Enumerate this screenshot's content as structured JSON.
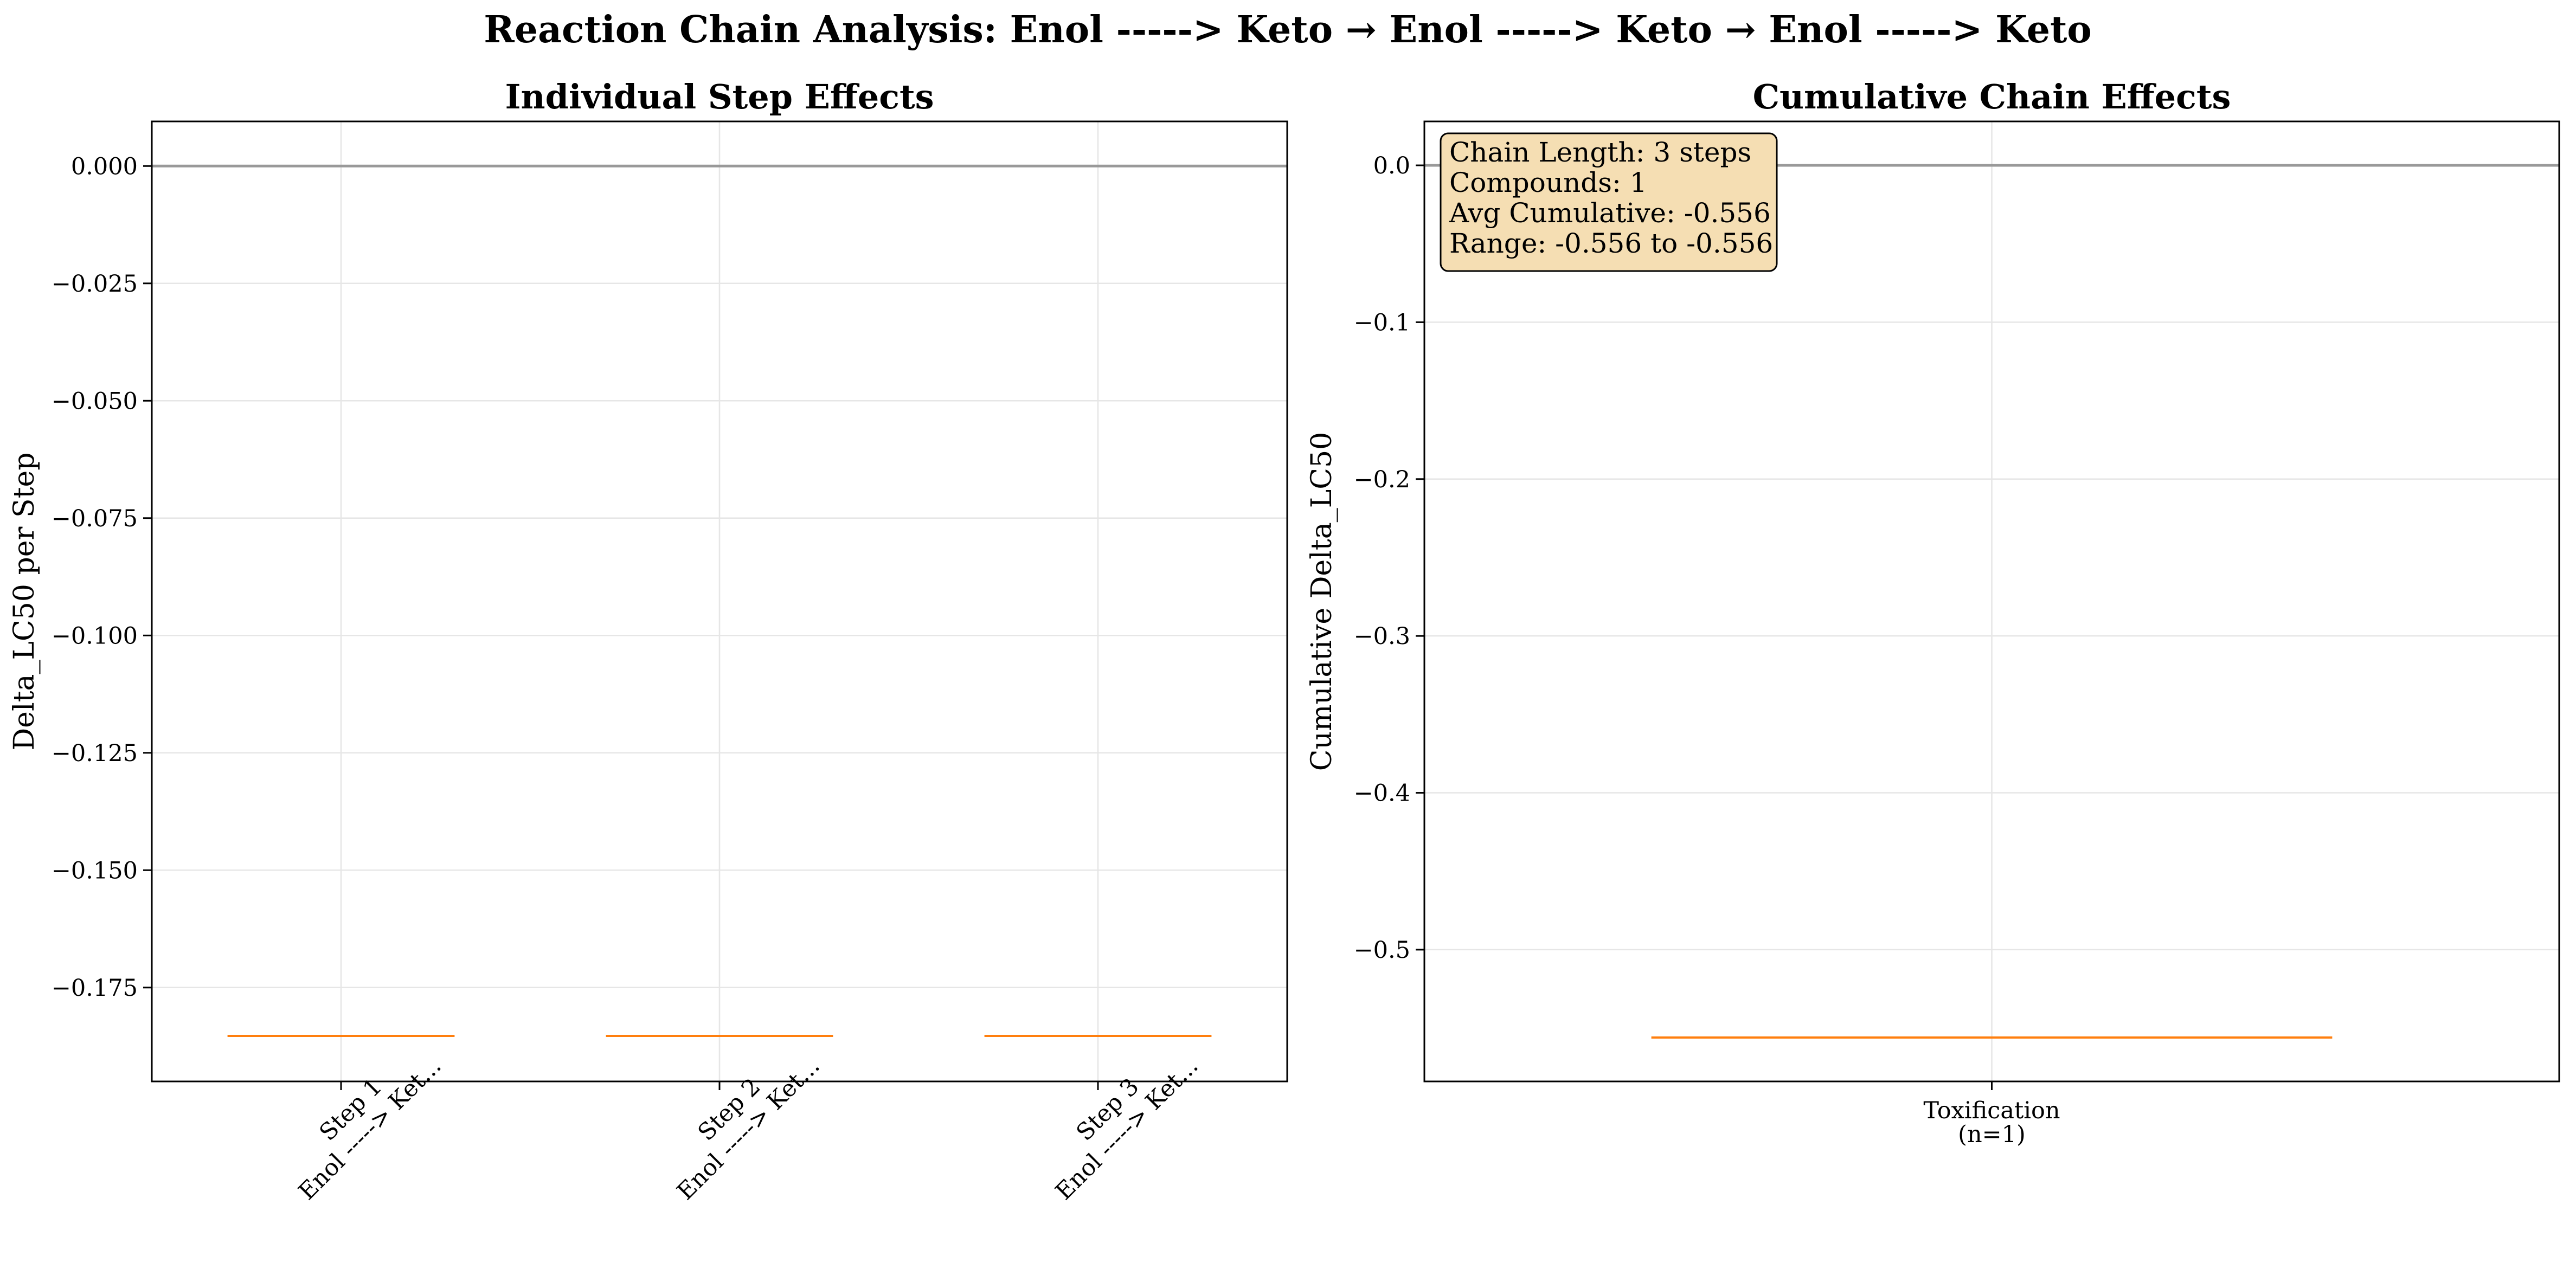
{
  "figure_title": "Reaction Chain Analysis: Enol -----> Keto → Enol -----> Keto → Enol -----> Keto",
  "chart_data": [
    {
      "type": "box",
      "title": "Individual Step Effects",
      "xlabel": "",
      "ylabel": "Delta_LC50 per Step",
      "categories": [
        {
          "line1": "Step 1",
          "line2": "Enol -----> Ket..."
        },
        {
          "line1": "Step 2",
          "line2": "Enol -----> Ket..."
        },
        {
          "line1": "Step 3",
          "line2": "Enol -----> Ket..."
        }
      ],
      "values": [
        -0.1853,
        -0.1853,
        -0.1853
      ],
      "ylim": [
        -0.195,
        0.0095
      ],
      "yticks": [
        0.0,
        -0.025,
        -0.05,
        -0.075,
        -0.1,
        -0.125,
        -0.15,
        -0.175
      ],
      "ytick_labels": [
        "0.000",
        "−0.025",
        "−0.050",
        "−0.075",
        "−0.100",
        "−0.125",
        "−0.150",
        "−0.175"
      ],
      "reference_line": 0.0,
      "grid": true,
      "median_color": "#ff7f0e"
    },
    {
      "type": "box",
      "title": "Cumulative Chain Effects",
      "xlabel": "",
      "ylabel": "Cumulative Delta_LC50",
      "categories": [
        {
          "line1": "Toxification",
          "line2": "(n=1)"
        }
      ],
      "values": [
        -0.556
      ],
      "ylim": [
        -0.584,
        0.028
      ],
      "yticks": [
        0.0,
        -0.1,
        -0.2,
        -0.3,
        -0.4,
        -0.5
      ],
      "ytick_labels": [
        "0.0",
        "−0.1",
        "−0.2",
        "−0.3",
        "−0.4",
        "−0.5"
      ],
      "reference_line": 0.0,
      "grid": true,
      "median_color": "#ff7f0e",
      "annotation": [
        "Chain Length: 3 steps",
        "Compounds: 1",
        "Avg Cumulative: -0.556",
        "Range: -0.556 to -0.556"
      ],
      "annotation_bg": "#f5deb3"
    }
  ]
}
